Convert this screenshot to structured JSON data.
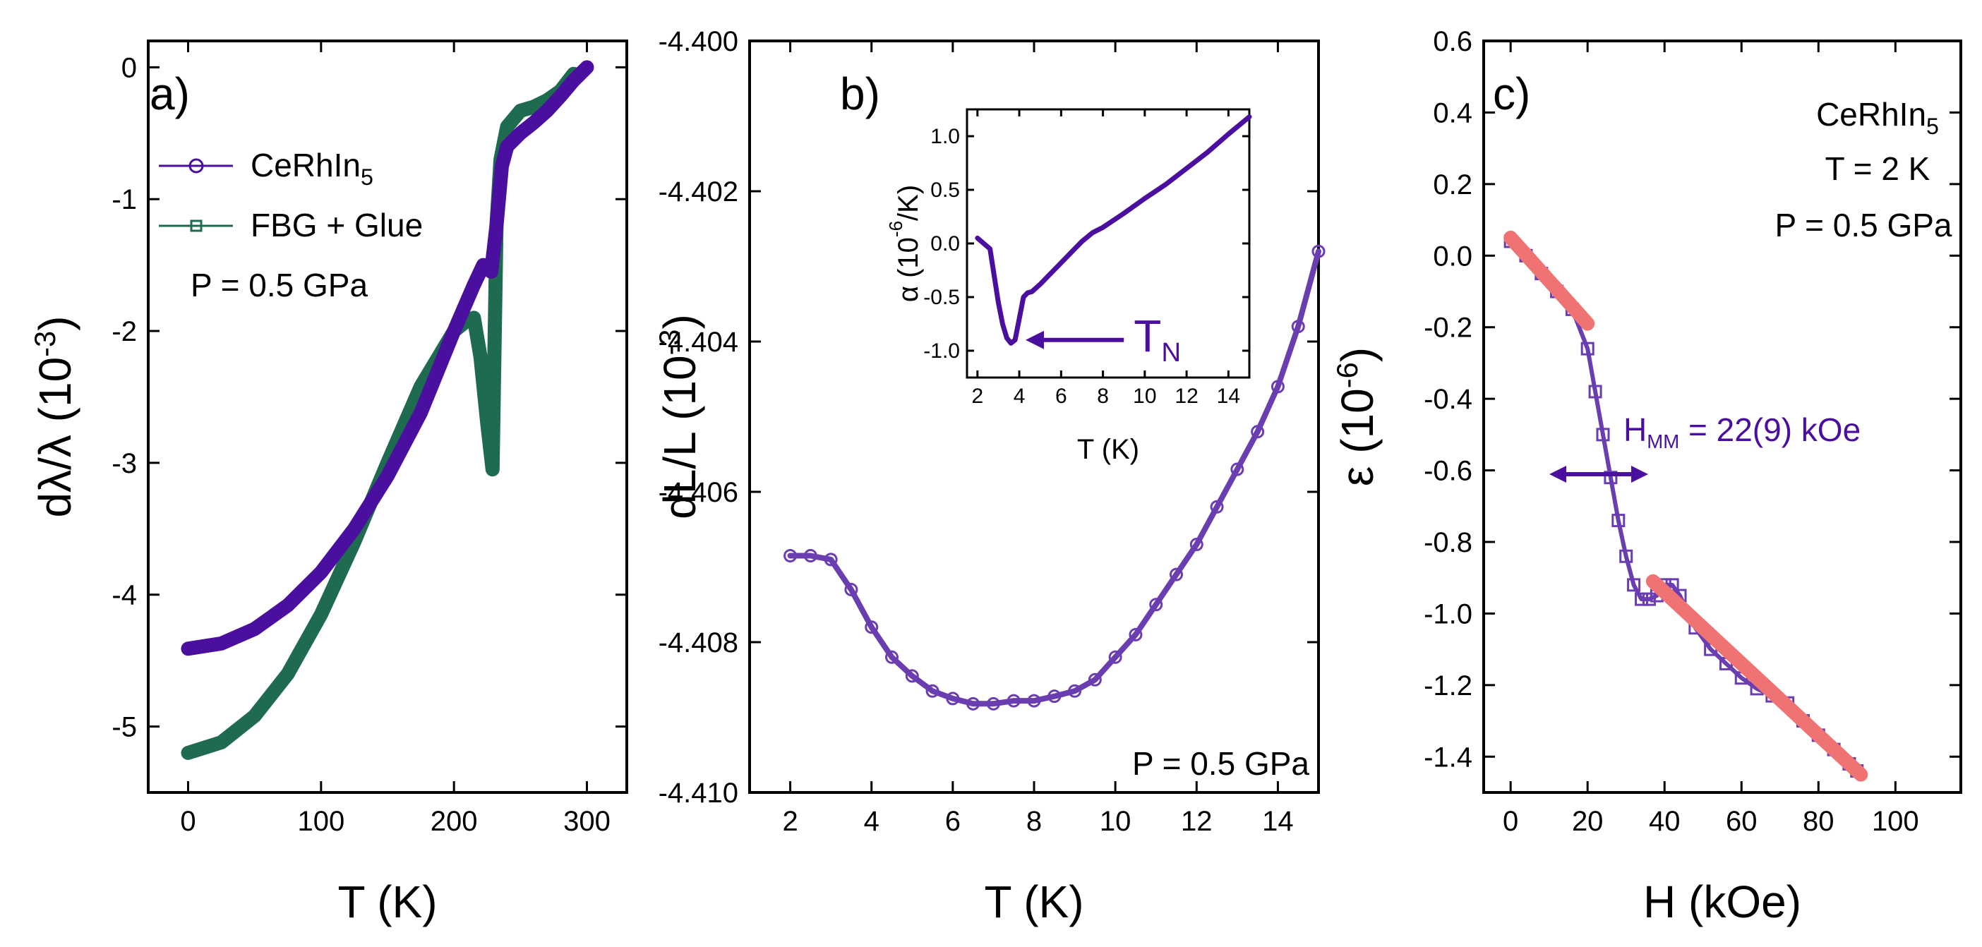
{
  "chart_data": [
    {
      "panel": "a)",
      "type": "line",
      "xlabel": "T (K)",
      "ylabel": "dλ/λ (10^-3)",
      "ylabel_parts": {
        "main": "dλ/λ (10",
        "sup": "-3",
        "close": ")"
      },
      "xlim": [
        -30,
        330
      ],
      "ylim": [
        -5.5,
        0.2
      ],
      "xticks": [
        0,
        100,
        200,
        300
      ],
      "yticks": [
        0,
        -1,
        -2,
        -3,
        -4,
        -5
      ],
      "annotation": "P = 0.5 GPa",
      "legend": [
        {
          "label": "CeRhIn",
          "sub": "5",
          "color": "#4b0fa0",
          "marker": "circle"
        },
        {
          "label": "FBG + Glue",
          "sub": "",
          "color": "#1e6b4f",
          "marker": "square"
        }
      ],
      "series": [
        {
          "name": "CeRhIn5",
          "color": "#4b0fa0",
          "x": [
            0,
            25,
            50,
            75,
            100,
            125,
            150,
            175,
            200,
            215,
            222,
            228,
            232,
            236,
            240,
            250,
            260,
            270,
            280,
            290,
            300
          ],
          "y": [
            -4.41,
            -4.37,
            -4.26,
            -4.08,
            -3.83,
            -3.5,
            -3.1,
            -2.62,
            -2.0,
            -1.65,
            -1.5,
            -1.55,
            -1.2,
            -0.75,
            -0.6,
            -0.5,
            -0.42,
            -0.33,
            -0.22,
            -0.1,
            0.0
          ]
        },
        {
          "name": "FBG + Glue",
          "color": "#1e6b4f",
          "x": [
            0,
            25,
            50,
            75,
            100,
            125,
            150,
            175,
            200,
            210,
            215,
            220,
            225,
            229,
            232,
            235,
            240,
            250,
            260,
            270,
            280,
            290
          ],
          "y": [
            -5.2,
            -5.12,
            -4.92,
            -4.6,
            -4.15,
            -3.6,
            -3.0,
            -2.42,
            -2.0,
            -1.92,
            -1.9,
            -2.2,
            -2.7,
            -3.05,
            -1.2,
            -0.7,
            -0.45,
            -0.33,
            -0.3,
            -0.25,
            -0.18,
            -0.05
          ]
        }
      ]
    },
    {
      "panel": "b)",
      "type": "scatter",
      "xlabel": "T (K)",
      "ylabel": "dL/L (10^-3)",
      "ylabel_parts": {
        "main": "dL/L (10",
        "sup": "-3",
        "close": ")"
      },
      "xlim": [
        1,
        15
      ],
      "ylim": [
        -4.41,
        -4.4
      ],
      "xticks": [
        2,
        4,
        6,
        8,
        10,
        12,
        14
      ],
      "yticks": [
        -4.4,
        -4.402,
        -4.404,
        -4.406,
        -4.408,
        -4.41
      ],
      "ytick_labels": [
        "-4.400",
        "-4.402",
        "-4.404",
        "-4.406",
        "-4.408",
        "-4.410"
      ],
      "annotation": "P = 0.5 GPa",
      "series": [
        {
          "name": "CeRhIn5",
          "color": "#6a3db0",
          "x": [
            2.0,
            2.5,
            3.0,
            3.5,
            4.0,
            4.5,
            5.0,
            5.5,
            6.0,
            6.5,
            7.0,
            7.5,
            8.0,
            8.5,
            9.0,
            9.5,
            10.0,
            10.5,
            11.0,
            11.5,
            12.0,
            12.5,
            13.0,
            13.5,
            14.0,
            14.5,
            15.0
          ],
          "y": [
            -4.40685,
            -4.40685,
            -4.4069,
            -4.4073,
            -4.4078,
            -4.4082,
            -4.40845,
            -4.40865,
            -4.40875,
            -4.40882,
            -4.40882,
            -4.40878,
            -4.40878,
            -4.40872,
            -4.40865,
            -4.4085,
            -4.4082,
            -4.4079,
            -4.4075,
            -4.4071,
            -4.4067,
            -4.4062,
            -4.4057,
            -4.4052,
            -4.4046,
            -4.4038,
            -4.4028
          ]
        }
      ],
      "inset": {
        "type": "line",
        "xlabel": "T (K)",
        "ylabel": "α (10^-6/K)",
        "ylabel_parts": {
          "main": "α (10",
          "sup": "-6",
          "close": "/K)"
        },
        "xlim": [
          1.5,
          15
        ],
        "ylim": [
          -1.25,
          1.25
        ],
        "xticks": [
          2,
          4,
          6,
          8,
          10,
          12,
          14
        ],
        "yticks": [
          1.0,
          0.5,
          0.0,
          -0.5,
          -1.0
        ],
        "ytick_labels": [
          "1.0",
          "0.5",
          "0.0",
          "-0.5",
          "-1.0"
        ],
        "arrow_label": {
          "main": "T",
          "sub": "N"
        },
        "series": [
          {
            "name": "alpha",
            "color": "#4b0fa0",
            "x": [
              2.0,
              2.3,
              2.6,
              2.8,
              3.0,
              3.2,
              3.4,
              3.6,
              3.8,
              4.0,
              4.2,
              4.4,
              4.6,
              5.0,
              5.5,
              6.0,
              6.5,
              7.0,
              7.5,
              8.0,
              9.0,
              10.0,
              11.0,
              12.0,
              13.0,
              14.0,
              15.0
            ],
            "y": [
              0.05,
              0.0,
              -0.05,
              -0.3,
              -0.55,
              -0.75,
              -0.88,
              -0.93,
              -0.9,
              -0.7,
              -0.5,
              -0.46,
              -0.45,
              -0.38,
              -0.28,
              -0.18,
              -0.08,
              0.02,
              0.1,
              0.15,
              0.28,
              0.42,
              0.55,
              0.7,
              0.85,
              1.02,
              1.18
            ]
          }
        ]
      }
    },
    {
      "panel": "c)",
      "type": "scatter",
      "xlabel": "H (kOe)",
      "ylabel": "ε (10^-6)",
      "ylabel_parts": {
        "main": "ε (10",
        "sup": "-6",
        "close": ")"
      },
      "xlim": [
        -7,
        117
      ],
      "ylim": [
        -1.5,
        0.6
      ],
      "xticks": [
        0,
        20,
        40,
        60,
        80,
        100
      ],
      "yticks": [
        0.6,
        0.4,
        0.2,
        0.0,
        -0.2,
        -0.4,
        -0.6,
        -0.8,
        -1.0,
        -1.2,
        -1.4
      ],
      "ytick_labels": [
        "0.6",
        "0.4",
        "0.2",
        "0.0",
        "-0.2",
        "-0.4",
        "-0.6",
        "-0.8",
        "-1.0",
        "-1.2",
        "-1.4"
      ],
      "annotations": {
        "compound": {
          "main": "CeRhIn",
          "sub": "5"
        },
        "temperature": "T = 2 K",
        "pressure": "P = 0.5 GPa",
        "hmm": {
          "main": "H",
          "sub": "MM",
          "rest": " = 22(9) kOe"
        }
      },
      "series": [
        {
          "name": "data",
          "color": "#6a3db0",
          "x": [
            0,
            4,
            8,
            12,
            16,
            20,
            22,
            24,
            26,
            28,
            30,
            32,
            34,
            36,
            38,
            40,
            42,
            44,
            48,
            52,
            56,
            60,
            64,
            68,
            72,
            76,
            80,
            84,
            88,
            90
          ],
          "y": [
            0.04,
            0.0,
            -0.05,
            -0.1,
            -0.15,
            -0.26,
            -0.38,
            -0.5,
            -0.62,
            -0.74,
            -0.84,
            -0.92,
            -0.96,
            -0.96,
            -0.95,
            -0.92,
            -0.92,
            -0.95,
            -1.04,
            -1.1,
            -1.14,
            -1.18,
            -1.21,
            -1.23,
            -1.25,
            -1.3,
            -1.34,
            -1.38,
            -1.42,
            -1.44
          ]
        },
        {
          "name": "fit low field",
          "color": "#f07373",
          "x": [
            0,
            20
          ],
          "y": [
            0.05,
            -0.19
          ]
        },
        {
          "name": "fit high field",
          "color": "#f07373",
          "x": [
            37,
            91
          ],
          "y": [
            -0.91,
            -1.45
          ]
        }
      ]
    }
  ]
}
